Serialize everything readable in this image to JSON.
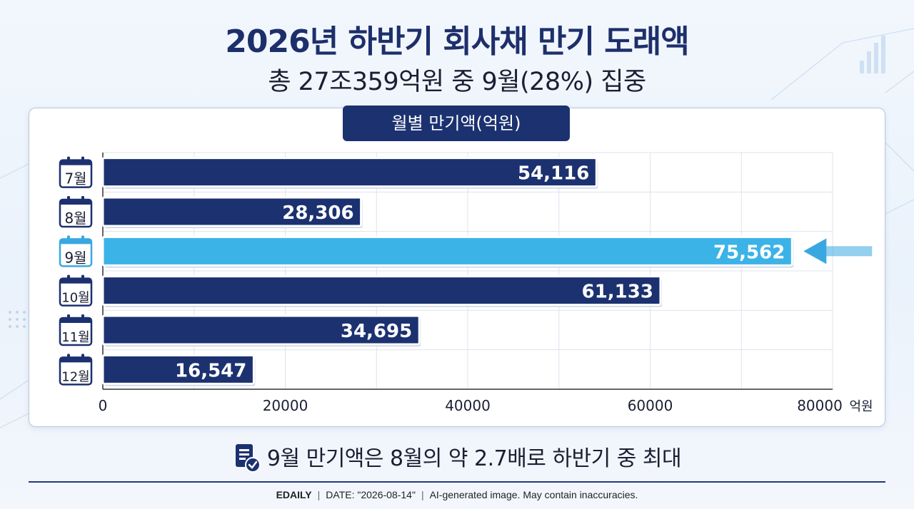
{
  "title": "2026년 하반기 회사채 만기 도래액",
  "subtitle": "총 27조359억원 중 9월(28%) 집중",
  "chart_header": "월별 만기액(억원)",
  "note": "9월 만기액은 8월의 약 2.7배로 하반기 중 최대",
  "footer": {
    "brand": "EDAILY",
    "date": "DATE: \"2026-08-14\"",
    "disclaimer": "AI-generated image. May contain inaccuracies."
  },
  "colors": {
    "bar": "#1c3170",
    "highlight": "#3cb3e6",
    "arrow": "#3aa8e0"
  },
  "chart_data": {
    "type": "bar",
    "orientation": "horizontal",
    "categories": [
      "7월",
      "8월",
      "9월",
      "10월",
      "11월",
      "12월"
    ],
    "values": [
      54116,
      28306,
      75562,
      61133,
      34695,
      16547
    ],
    "value_labels": [
      "54,116",
      "28,306",
      "75,562",
      "61,133",
      "34,695",
      "16,547"
    ],
    "highlight_index": 2,
    "xlim": [
      0,
      80000
    ],
    "xticks": [
      0,
      20000,
      40000,
      60000,
      80000
    ],
    "xtick_labels": [
      "0",
      "20000",
      "40000",
      "60000",
      "80000"
    ],
    "xunit": "억원",
    "grid": true
  }
}
